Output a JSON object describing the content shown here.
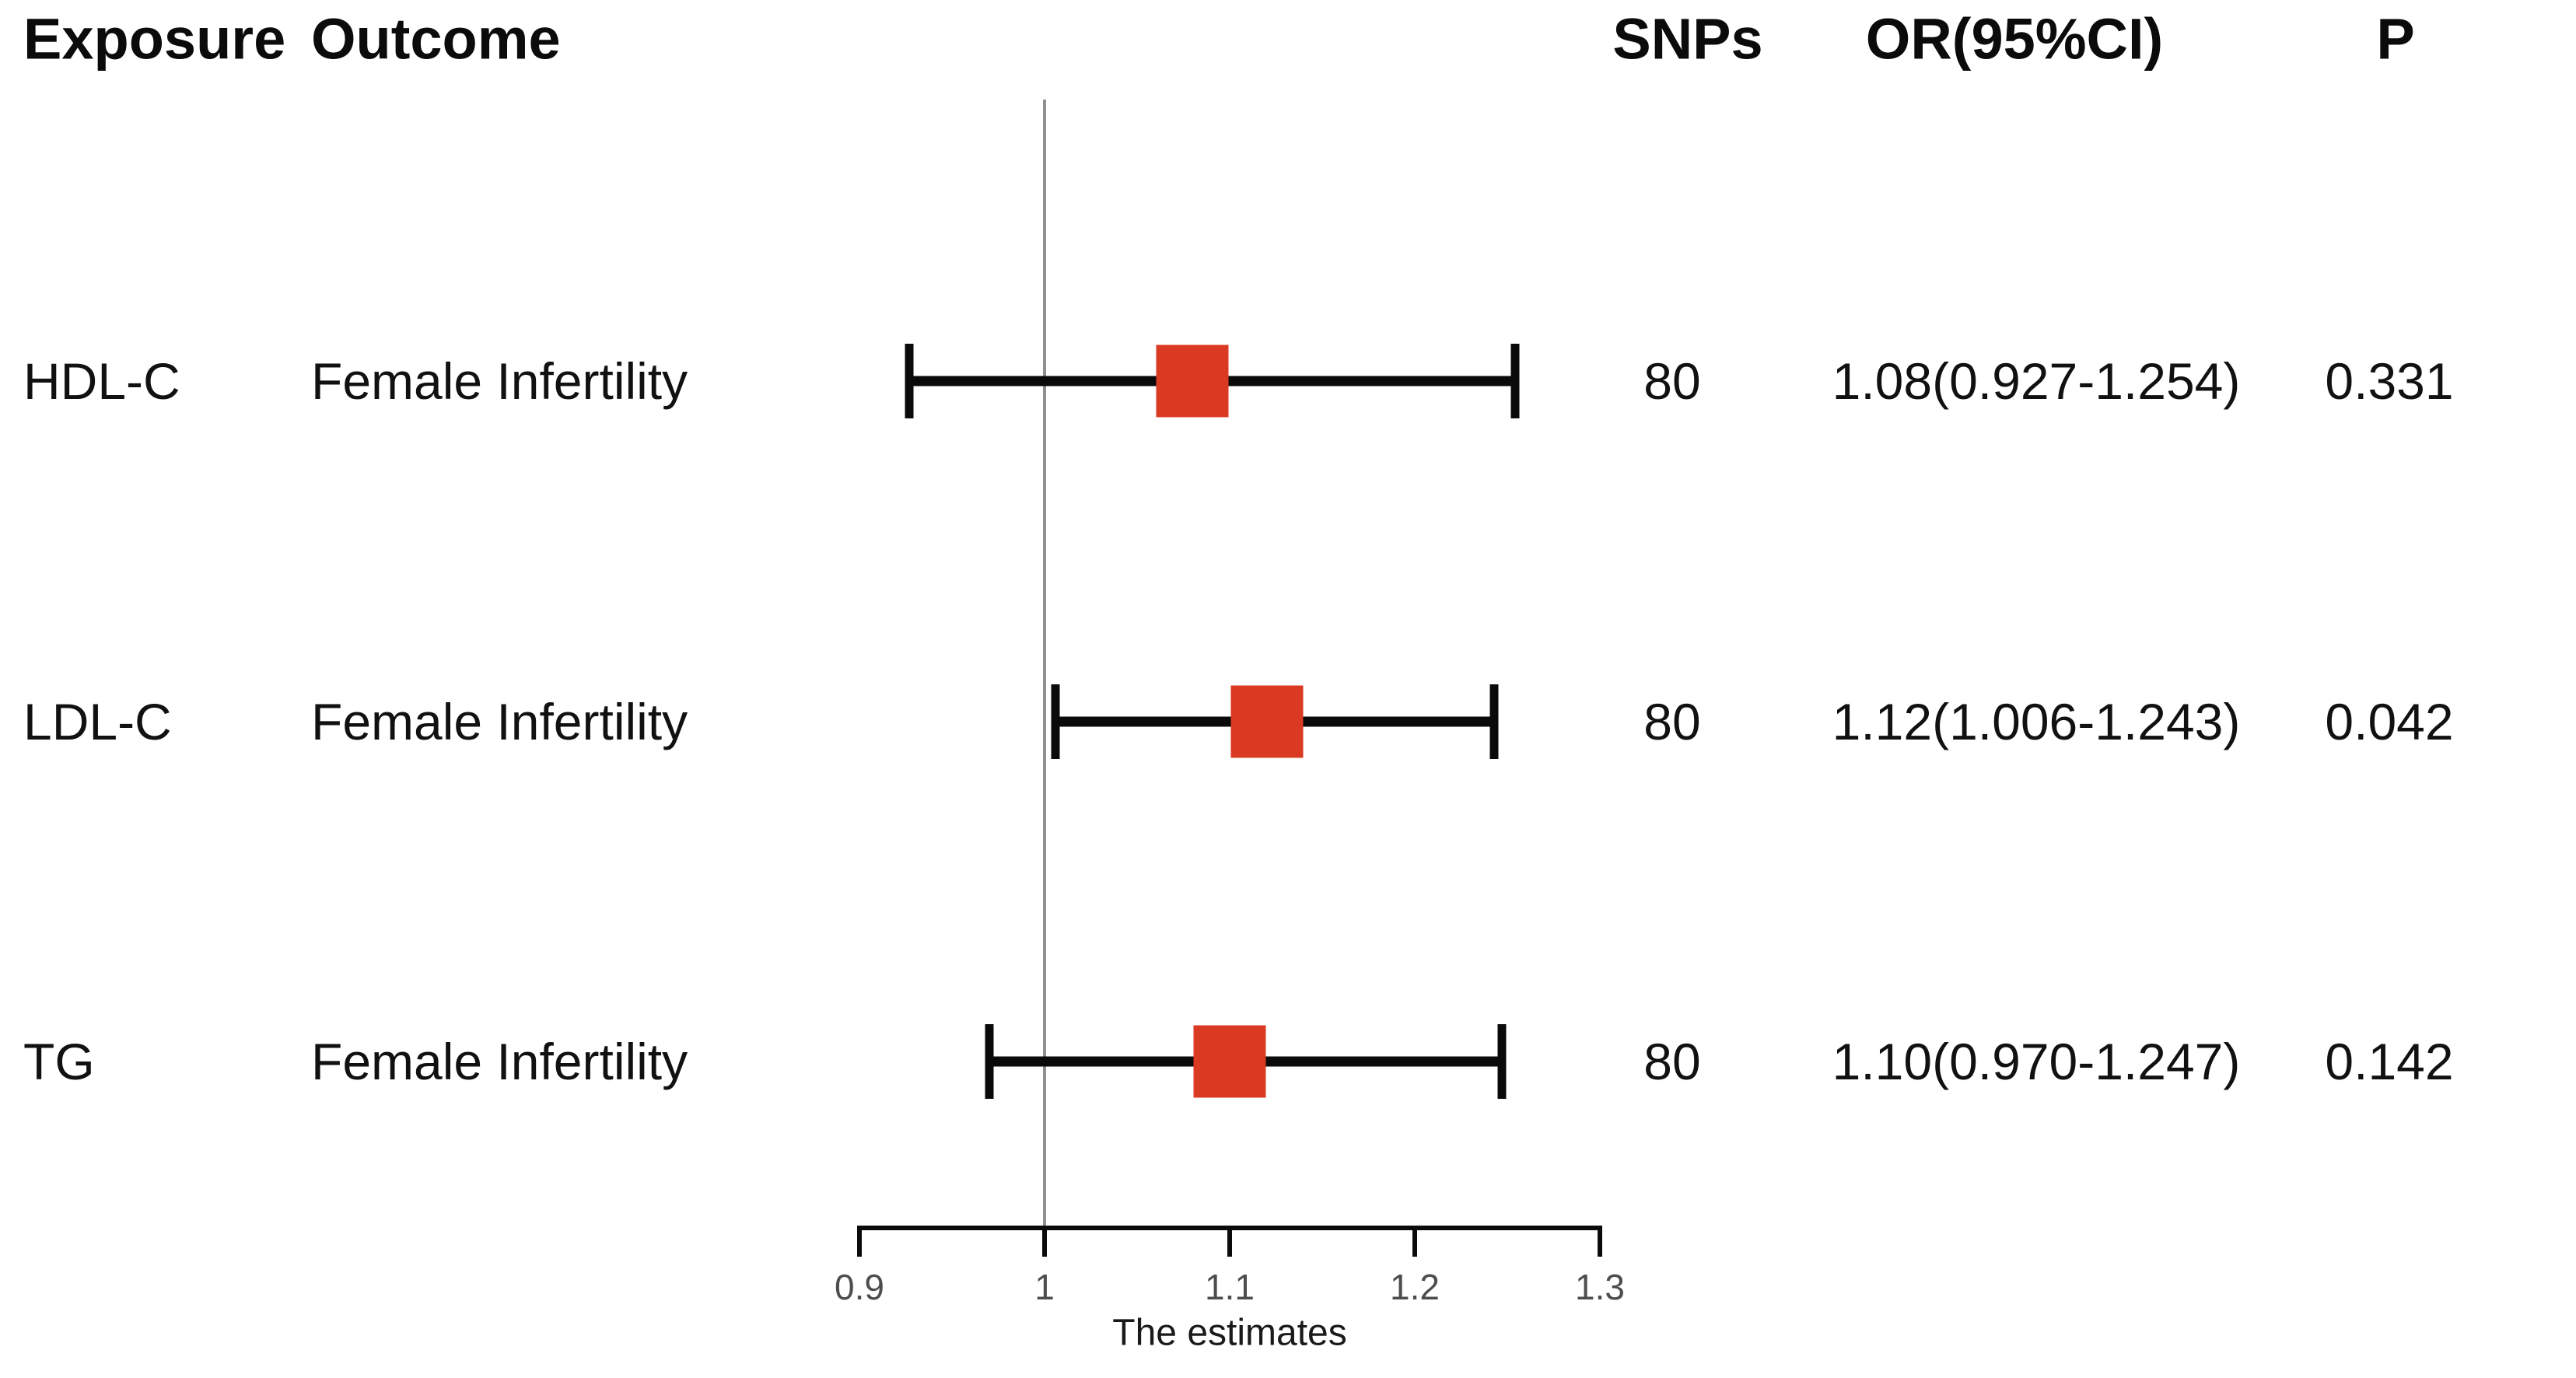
{
  "header": {
    "exposure": "Exposure",
    "outcome": "Outcome",
    "snps": "SNPs",
    "or_ci": "OR(95%CI)",
    "p": "P"
  },
  "chart_data": {
    "type": "forest",
    "title": "",
    "rows": [
      {
        "exposure": "HDL-C",
        "outcome": "Female Infertility",
        "snps": "80",
        "or": 1.08,
        "ci_low": 0.927,
        "ci_high": 1.254,
        "or_ci": "1.08(0.927-1.254)",
        "p": "0.331"
      },
      {
        "exposure": "LDL-C",
        "outcome": "Female Infertility",
        "snps": "80",
        "or": 1.12,
        "ci_low": 1.006,
        "ci_high": 1.243,
        "or_ci": "1.12(1.006-1.243)",
        "p": "0.042"
      },
      {
        "exposure": "TG",
        "outcome": "Female Infertility",
        "snps": "80",
        "or": 1.1,
        "ci_low": 0.97,
        "ci_high": 1.247,
        "or_ci": "1.10(0.970-1.247)",
        "p": "0.142"
      }
    ],
    "x_axis": {
      "label": "The estimates",
      "ticks": [
        0.9,
        1,
        1.1,
        1.2,
        1.3
      ],
      "tick_labels": [
        "0.9",
        "1",
        "1.1",
        "1.2",
        "1.3"
      ],
      "range": [
        0.9,
        1.3
      ],
      "reference_line": 1
    },
    "legend": null,
    "colors": {
      "marker": "#D93A21",
      "ci_line": "#0a0a0a",
      "reference_line": "#8f8f8f",
      "axis": "#0b0b0b"
    }
  }
}
